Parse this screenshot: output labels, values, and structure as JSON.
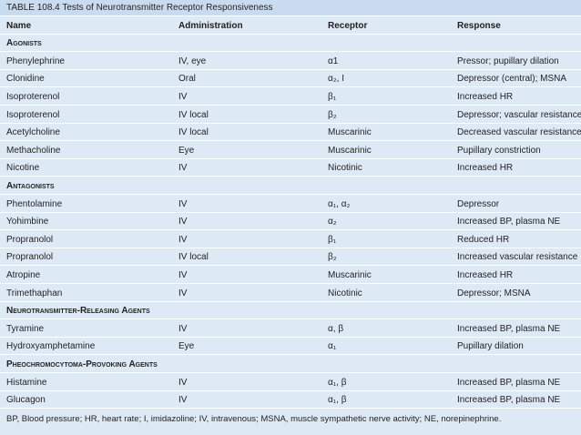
{
  "table": {
    "title": "TABLE 108.4 Tests of Neurotransmitter Receptor Responsiveness",
    "columns": [
      "Name",
      "Administration",
      "Receptor",
      "Response"
    ],
    "sections": [
      {
        "heading": "Agonists",
        "rows": [
          [
            "Phenylephrine",
            "IV, eye",
            "α1",
            "Pressor; pupillary dilation"
          ],
          [
            "Clonidine",
            "Oral",
            "α₂, I",
            "Depressor (central); MSNA"
          ],
          [
            "Isoproterenol",
            "IV",
            "β₁",
            "Increased HR"
          ],
          [
            "Isoproterenol",
            "IV local",
            "β₂",
            "Depressor; vascular resistance"
          ],
          [
            "Acetylcholine",
            "IV local",
            "Muscarinic",
            "Decreased vascular resistance"
          ],
          [
            "Methacholine",
            "Eye",
            "Muscarinic",
            "Pupillary constriction"
          ],
          [
            "Nicotine",
            "IV",
            "Nicotinic",
            "Increased HR"
          ]
        ]
      },
      {
        "heading": "Antagonists",
        "rows": [
          [
            "Phentolamine",
            "IV",
            "α₁, α₂",
            "Depressor"
          ],
          [
            "Yohimbine",
            "IV",
            "α₂",
            "Increased BP, plasma NE"
          ],
          [
            "Propranolol",
            "IV",
            "β₁",
            "Reduced HR"
          ],
          [
            "Propranolol",
            "IV local",
            "β₂",
            "Increased vascular resistance"
          ],
          [
            "Atropine",
            "IV",
            "Muscarinic",
            "Increased HR"
          ],
          [
            "Trimethaphan",
            "IV",
            "Nicotinic",
            "Depressor; MSNA"
          ]
        ]
      },
      {
        "heading": "Neurotransmitter-Releasing Agents",
        "rows": [
          [
            "Tyramine",
            "IV",
            "α, β",
            "Increased BP, plasma NE"
          ],
          [
            "Hydroxyamphetamine",
            "Eye",
            "α₁",
            "Pupillary dilation"
          ]
        ]
      },
      {
        "heading": "Pheochromocytoma-Provoking Agents",
        "rows": [
          [
            "Histamine",
            "IV",
            "α₁, β",
            "Increased BP, plasma NE"
          ],
          [
            "Glucagon",
            "IV",
            "α₁, β",
            "Increased BP, plasma NE"
          ]
        ]
      }
    ],
    "footnote": "BP, Blood pressure; HR, heart rate; I, imidazoline; IV, intravenous; MSNA, muscle sympathetic nerve activity; NE, norepinephrine."
  }
}
